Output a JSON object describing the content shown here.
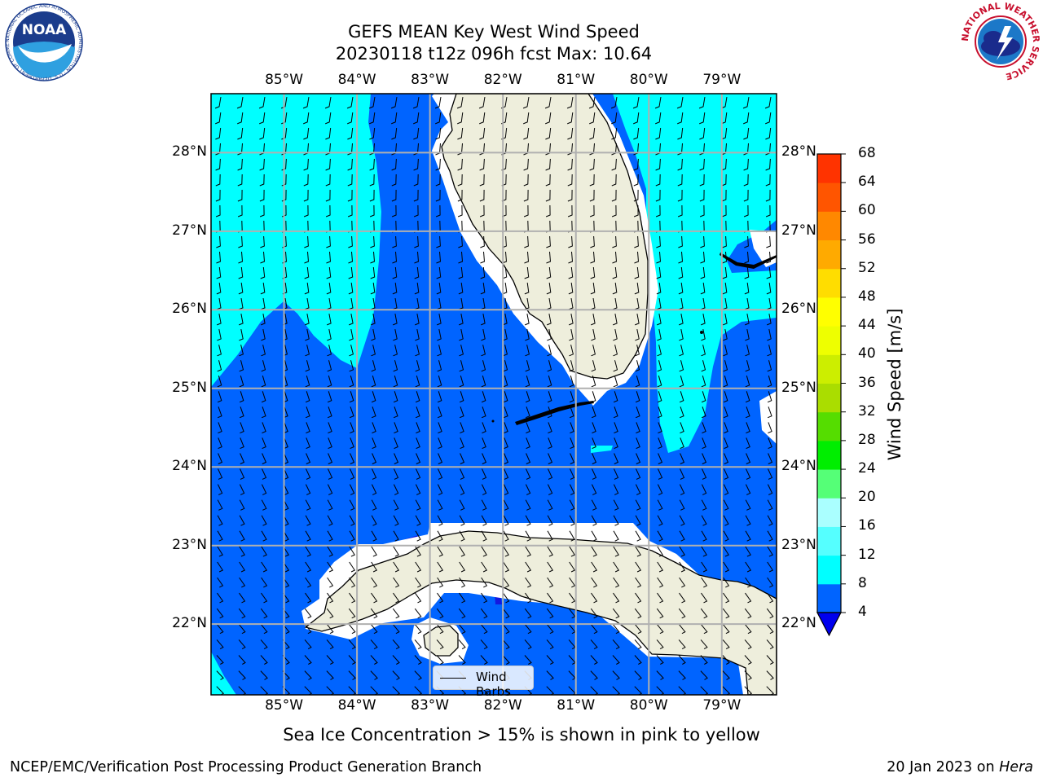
{
  "header": {
    "title_line1": "GEFS MEAN Key West Wind Speed",
    "title_line2": "20230118 t12z 096h fcst   Max: 10.64"
  },
  "logos": {
    "noaa": {
      "text": "NOAA",
      "ring_text": "NATIONAL OCEANIC AND ATMOSPHERIC ADMINISTRATION · U.S. DEPARTMENT OF COMMERCE"
    },
    "nws": {
      "ring_text": "NATIONAL WEATHER SERVICE"
    }
  },
  "map": {
    "lon_labels": [
      "85°W",
      "84°W",
      "83°W",
      "82°W",
      "81°W",
      "80°W",
      "79°W"
    ],
    "lat_labels": [
      "28°N",
      "27°N",
      "26°N",
      "25°N",
      "24°N",
      "23°N",
      "22°N"
    ],
    "lon_range": [
      -86.0,
      -78.25
    ],
    "lat_range": [
      21.1,
      28.75
    ],
    "colors": {
      "band_4_8": "#0064ff",
      "band_8_12": "#00ffff",
      "land": "#eeeedc",
      "grid": "#b0b0b0"
    }
  },
  "legend": {
    "label": "Wind Barbs"
  },
  "colorbar": {
    "title": "Wind Speed [m/s]",
    "levels": [
      4,
      8,
      12,
      16,
      20,
      24,
      28,
      32,
      36,
      40,
      44,
      48,
      52,
      56,
      60,
      64,
      68
    ],
    "labels": [
      "68",
      "64",
      "60",
      "56",
      "52",
      "48",
      "44",
      "40",
      "36",
      "32",
      "28",
      "24",
      "20",
      "16",
      "12",
      "8",
      "4"
    ],
    "colors": [
      "#0064ff",
      "#00ffff",
      "#55ffff",
      "#aaffff",
      "#55ff77",
      "#00ee00",
      "#55dd00",
      "#aadd00",
      "#ccee00",
      "#eeff00",
      "#ffff00",
      "#ffdd00",
      "#ffaa00",
      "#ff8800",
      "#ff5500",
      "#ff3300",
      "#ff0000"
    ],
    "under_color": "#0000ee"
  },
  "subtitle": "Sea Ice Concentration > 15% is shown in pink to yellow",
  "footer": {
    "left": "NCEP/EMC/Verification Post Processing Product Generation Branch",
    "right_date": "20 Jan 2023 on",
    "right_machine": "Hera"
  }
}
